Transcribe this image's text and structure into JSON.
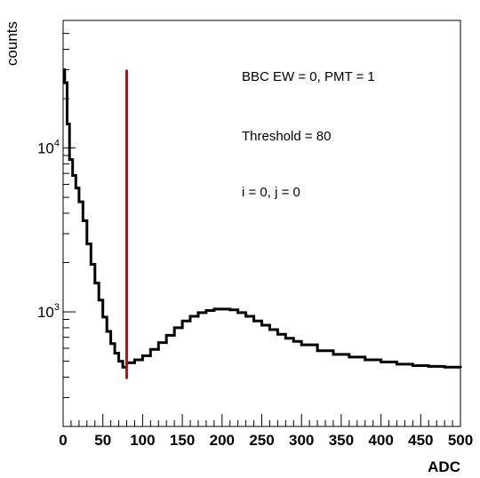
{
  "chart_data": {
    "type": "line",
    "xlabel": "ADC",
    "ylabel": "counts",
    "xlim": [
      0,
      500
    ],
    "ylim": [
      200,
      60000
    ],
    "yscale": "log",
    "grid": false,
    "x_ticks": [
      0,
      50,
      100,
      150,
      200,
      250,
      300,
      350,
      400,
      450,
      500
    ],
    "y_tick_labels": [
      {
        "value": 10000,
        "base": "10",
        "exp": "4"
      },
      {
        "value": 1000,
        "base": "10",
        "exp": "3"
      }
    ],
    "annotations": [
      "BBC EW = 0, PMT = 1",
      "Threshold = 80",
      "i = 0, j = 0"
    ],
    "threshold": {
      "x": 80,
      "y_range": [
        390,
        30000
      ],
      "color": "#e00000"
    },
    "series": [
      {
        "color": "#000000",
        "x": [
          0,
          2,
          5,
          8,
          12,
          16,
          20,
          25,
          30,
          35,
          40,
          45,
          50,
          55,
          60,
          65,
          70,
          75,
          80,
          90,
          100,
          110,
          120,
          130,
          140,
          150,
          160,
          170,
          180,
          190,
          200,
          210,
          220,
          230,
          240,
          250,
          260,
          270,
          280,
          290,
          300,
          320,
          340,
          360,
          380,
          400,
          420,
          440,
          460,
          480,
          500
        ],
        "y": [
          30000,
          25000,
          14000,
          8500,
          6800,
          5700,
          4700,
          3600,
          2600,
          1950,
          1500,
          1180,
          930,
          760,
          640,
          560,
          500,
          460,
          490,
          510,
          540,
          590,
          650,
          720,
          800,
          880,
          940,
          990,
          1020,
          1040,
          1040,
          1030,
          990,
          940,
          880,
          830,
          780,
          730,
          690,
          660,
          630,
          580,
          550,
          530,
          510,
          495,
          480,
          470,
          465,
          460,
          455
        ]
      }
    ]
  }
}
